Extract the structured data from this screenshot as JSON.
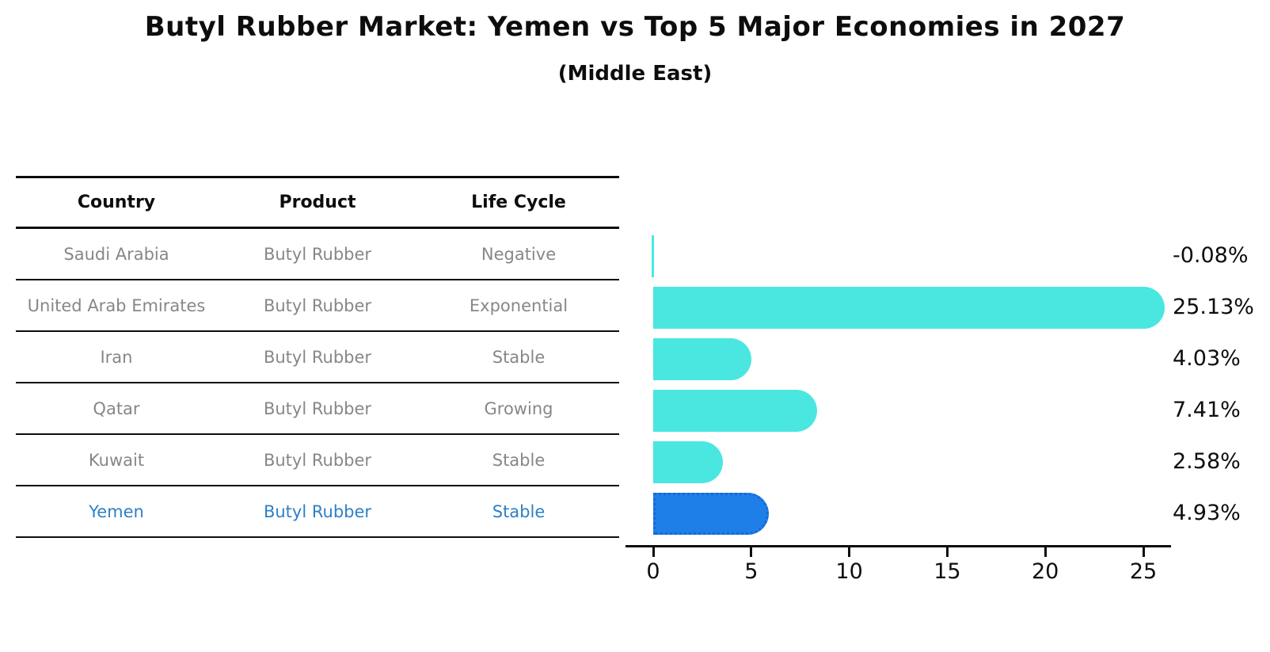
{
  "title": "Butyl Rubber Market: Yemen vs Top 5 Major Economies in 2027",
  "subtitle": "(Middle East)",
  "table": {
    "headers": [
      "Country",
      "Product",
      "Life Cycle"
    ],
    "rows": [
      {
        "country": "Saudi Arabia",
        "product": "Butyl Rubber",
        "life_cycle": "Negative",
        "highlight": false
      },
      {
        "country": "United Arab Emirates",
        "product": "Butyl Rubber",
        "life_cycle": "Exponential",
        "highlight": false
      },
      {
        "country": "Iran",
        "product": "Butyl Rubber",
        "life_cycle": "Stable",
        "highlight": false
      },
      {
        "country": "Qatar",
        "product": "Butyl Rubber",
        "life_cycle": "Growing",
        "highlight": false
      },
      {
        "country": "Kuwait",
        "product": "Butyl Rubber",
        "life_cycle": "Stable",
        "highlight": false
      },
      {
        "country": "Yemen",
        "product": "Butyl Rubber",
        "life_cycle": "Stable",
        "highlight": true
      }
    ]
  },
  "chart_data": {
    "type": "bar",
    "orientation": "horizontal",
    "title": "",
    "xlabel": "",
    "ylabel": "",
    "categories": [
      "Saudi Arabia",
      "United Arab Emirates",
      "Iran",
      "Qatar",
      "Kuwait",
      "Yemen"
    ],
    "values": [
      -0.08,
      25.13,
      4.03,
      7.41,
      2.58,
      4.93
    ],
    "value_labels": [
      "-0.08%",
      "25.13%",
      "4.03%",
      "7.41%",
      "2.58%",
      "4.93%"
    ],
    "x_ticks": [
      0,
      5,
      10,
      15,
      20,
      25
    ],
    "xlim": [
      -1.3,
      26.4
    ],
    "grid": false,
    "legend": false,
    "bar_color": "#4ae7e1",
    "highlight_color": "#1f7fe8",
    "highlight_border_color": "#1668d8",
    "highlight_index": 5
  },
  "colors": {
    "highlight_text": "#2e80c6",
    "row_text": "#878787",
    "header_text": "#0d0d0d"
  }
}
